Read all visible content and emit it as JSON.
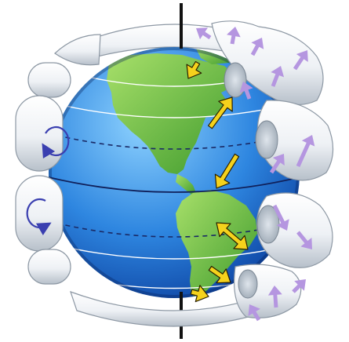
{
  "diagram": {
    "subject": "globe-with-atmospheric-circulation-cells",
    "cells_per_hemisphere": 3,
    "surface_wind_bands": 6,
    "colors": {
      "ocean_light": "#8fd3ff",
      "ocean_mid": "#2e86e0",
      "ocean_dark": "#0a3d9c",
      "land_light": "#a8e06a",
      "land_dark": "#3e9a2c",
      "cell_fill": "#eef1f5",
      "cell_shade": "#b7c0ca",
      "cell_edge": "#8d98a4",
      "surface_wind_arrow": "#f5d21c",
      "surface_wind_outline": "#2a2000",
      "cell_circulation_arrow": "#b596e0",
      "rotation_arrow": "#3a3fb0",
      "axis": "#111111",
      "latitude_lines": "#ffffff",
      "dashed_latitudes": "#1a2a66"
    },
    "icons": [
      "earth-axis",
      "circulation-cell",
      "wind-arrow",
      "rotation-arrow"
    ]
  }
}
